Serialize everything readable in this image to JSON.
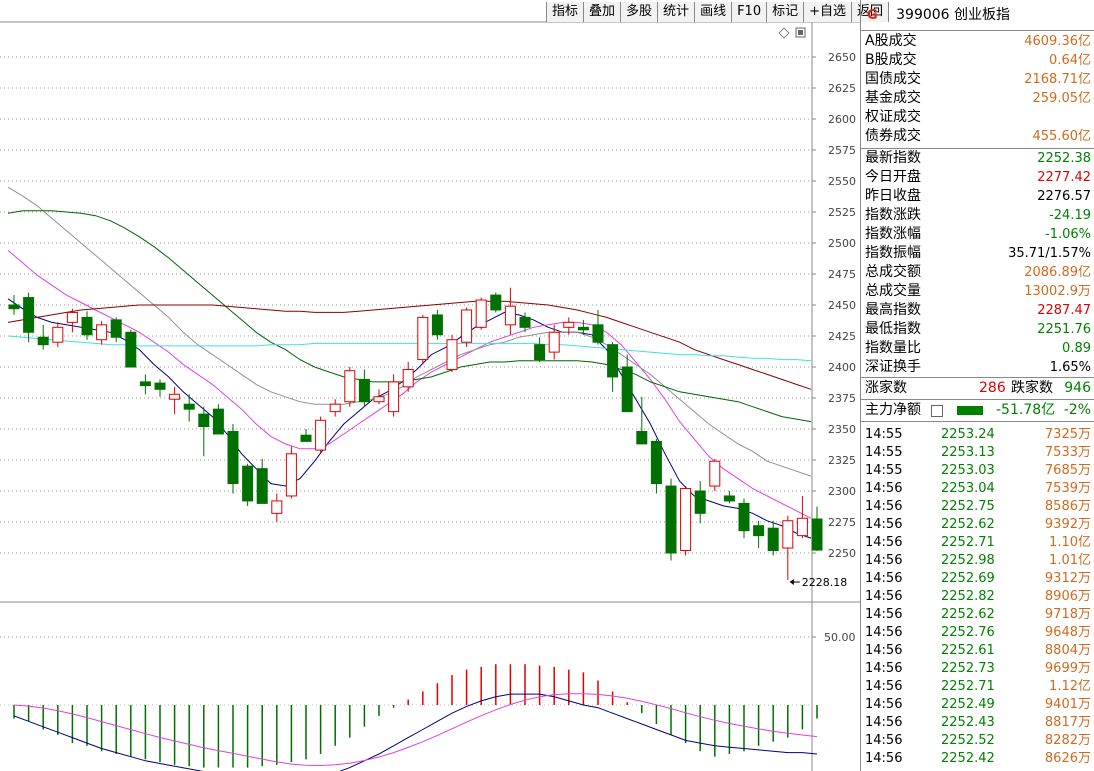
{
  "toolbar": {
    "buttons": [
      "指标",
      "叠加",
      "多股",
      "统计",
      "画线",
      "F10",
      "标记",
      "+自选",
      "返回"
    ]
  },
  "panel": {
    "logo": "G",
    "code": "399006",
    "name": "创业板指",
    "turnover": [
      {
        "label": "A股成交",
        "value": "4609.36亿"
      },
      {
        "label": "B股成交",
        "value": "0.64亿"
      },
      {
        "label": "国债成交",
        "value": "2168.71亿"
      },
      {
        "label": "基金成交",
        "value": "259.05亿"
      },
      {
        "label": "权证成交",
        "value": ""
      },
      {
        "label": "债券成交",
        "value": "455.60亿"
      }
    ],
    "quote": [
      {
        "label": "最新指数",
        "value": "2252.38",
        "color": "green"
      },
      {
        "label": "今日开盘",
        "value": "2277.42",
        "color": "red"
      },
      {
        "label": "昨日收盘",
        "value": "2276.57",
        "color": "black"
      },
      {
        "label": "指数涨跌",
        "value": "-24.19",
        "color": "green"
      },
      {
        "label": "指数涨幅",
        "value": "-1.06%",
        "color": "green"
      },
      {
        "label": "指数振幅",
        "value": "35.71/1.57%",
        "color": "black"
      },
      {
        "label": "总成交额",
        "value": "2086.89亿",
        "color": "orange"
      },
      {
        "label": "总成交量",
        "value": "13002.9万",
        "color": "orange"
      },
      {
        "label": "最高指数",
        "value": "2287.47",
        "color": "red"
      },
      {
        "label": "最低指数",
        "value": "2251.76",
        "color": "green"
      },
      {
        "label": "指数量比",
        "value": "0.89",
        "color": "green"
      },
      {
        "label": "深证换手",
        "value": "1.65%",
        "color": "black"
      }
    ],
    "breadth": {
      "up_label": "涨家数",
      "up": "286",
      "down_label": "跌家数",
      "down": "946"
    },
    "main_flow": {
      "label": "主力净额",
      "value": "-51.78亿",
      "pct": "-2%"
    },
    "ticks": [
      {
        "t": "14:55",
        "p": "2253.24",
        "v": "7325万"
      },
      {
        "t": "14:55",
        "p": "2253.13",
        "v": "7533万"
      },
      {
        "t": "14:55",
        "p": "2253.03",
        "v": "7685万"
      },
      {
        "t": "14:56",
        "p": "2253.04",
        "v": "7539万"
      },
      {
        "t": "14:56",
        "p": "2252.75",
        "v": "8586万"
      },
      {
        "t": "14:56",
        "p": "2252.62",
        "v": "9392万"
      },
      {
        "t": "14:56",
        "p": "2252.71",
        "v": "1.10亿"
      },
      {
        "t": "14:56",
        "p": "2252.98",
        "v": "1.01亿"
      },
      {
        "t": "14:56",
        "p": "2252.69",
        "v": "9312万"
      },
      {
        "t": "14:56",
        "p": "2252.82",
        "v": "8906万"
      },
      {
        "t": "14:56",
        "p": "2252.62",
        "v": "9718万"
      },
      {
        "t": "14:56",
        "p": "2252.76",
        "v": "9648万"
      },
      {
        "t": "14:56",
        "p": "2252.61",
        "v": "8804万"
      },
      {
        "t": "14:56",
        "p": "2252.73",
        "v": "9699万"
      },
      {
        "t": "14:56",
        "p": "2252.71",
        "v": "1.12亿"
      },
      {
        "t": "14:56",
        "p": "2252.49",
        "v": "9401万"
      },
      {
        "t": "14:56",
        "p": "2252.43",
        "v": "8817万"
      },
      {
        "t": "14:56",
        "p": "2252.52",
        "v": "8282万"
      },
      {
        "t": "14:56",
        "p": "2252.42",
        "v": "8626万"
      }
    ]
  },
  "chart_data": [
    {
      "type": "candlestick",
      "yticks": [
        2250,
        2275,
        2300,
        2325,
        2350,
        2375,
        2400,
        2425,
        2450,
        2475,
        2500,
        2525,
        2550,
        2575,
        2600,
        2625,
        2650
      ],
      "ylim": [
        2225,
        2665
      ],
      "grid": true,
      "candles": [
        [
          2450,
          2458,
          2442,
          2447
        ],
        [
          2456,
          2460,
          2420,
          2428
        ],
        [
          2424,
          2434,
          2414,
          2418
        ],
        [
          2420,
          2436,
          2416,
          2432
        ],
        [
          2436,
          2447,
          2428,
          2444
        ],
        [
          2440,
          2445,
          2422,
          2426
        ],
        [
          2422,
          2437,
          2418,
          2434
        ],
        [
          2438,
          2440,
          2420,
          2424
        ],
        [
          2428,
          2430,
          2400,
          2400
        ],
        [
          2388,
          2394,
          2378,
          2385
        ],
        [
          2387,
          2390,
          2376,
          2382
        ],
        [
          2374,
          2384,
          2362,
          2378
        ],
        [
          2370,
          2378,
          2356,
          2366
        ],
        [
          2362,
          2368,
          2328,
          2352
        ],
        [
          2366,
          2370,
          2346,
          2346
        ],
        [
          2348,
          2354,
          2298,
          2306
        ],
        [
          2320,
          2322,
          2288,
          2292
        ],
        [
          2318,
          2326,
          2290,
          2290
        ],
        [
          2282,
          2298,
          2275,
          2292
        ],
        [
          2296,
          2336,
          2294,
          2330
        ],
        [
          2345,
          2350,
          2340,
          2340
        ],
        [
          2333,
          2360,
          2330,
          2357
        ],
        [
          2364,
          2374,
          2360,
          2370
        ],
        [
          2372,
          2400,
          2368,
          2397
        ],
        [
          2390,
          2398,
          2368,
          2372
        ],
        [
          2372,
          2382,
          2370,
          2376
        ],
        [
          2364,
          2394,
          2360,
          2388
        ],
        [
          2384,
          2404,
          2380,
          2398
        ],
        [
          2406,
          2442,
          2402,
          2440
        ],
        [
          2442,
          2446,
          2422,
          2426
        ],
        [
          2398,
          2426,
          2396,
          2422
        ],
        [
          2420,
          2448,
          2416,
          2446
        ],
        [
          2432,
          2456,
          2430,
          2454
        ],
        [
          2458,
          2460,
          2444,
          2446
        ],
        [
          2434,
          2464,
          2426,
          2449
        ],
        [
          2440,
          2444,
          2428,
          2432
        ],
        [
          2418,
          2424,
          2404,
          2406
        ],
        [
          2412,
          2434,
          2406,
          2428
        ],
        [
          2432,
          2440,
          2426,
          2436
        ],
        [
          2432,
          2438,
          2426,
          2430
        ],
        [
          2434,
          2446,
          2418,
          2420
        ],
        [
          2418,
          2420,
          2380,
          2392
        ],
        [
          2400,
          2410,
          2364,
          2364
        ],
        [
          2348,
          2376,
          2338,
          2338
        ],
        [
          2340,
          2342,
          2298,
          2306
        ],
        [
          2304,
          2310,
          2244,
          2250
        ],
        [
          2252,
          2304,
          2248,
          2302
        ],
        [
          2300,
          2308,
          2274,
          2282
        ],
        [
          2304,
          2326,
          2300,
          2324
        ],
        [
          2296,
          2300,
          2290,
          2292
        ],
        [
          2290,
          2294,
          2262,
          2268
        ],
        [
          2272,
          2276,
          2254,
          2264
        ],
        [
          2270,
          2276,
          2248,
          2252
        ],
        [
          2254,
          2280,
          2228.18,
          2276
        ],
        [
          2264,
          2296,
          2262,
          2278
        ],
        [
          2277.42,
          2287.47,
          2251.76,
          2252.38
        ]
      ],
      "ma": [
        {
          "color": "#000080",
          "values": [
            2455,
            2447,
            2440,
            2436,
            2434,
            2432,
            2430,
            2428,
            2422,
            2414,
            2402,
            2392,
            2380,
            2370,
            2360,
            2346,
            2330,
            2318,
            2306,
            2304,
            2310,
            2324,
            2340,
            2354,
            2364,
            2374,
            2380,
            2388,
            2398,
            2410,
            2416,
            2424,
            2432,
            2438,
            2444,
            2442,
            2438,
            2432,
            2428,
            2428,
            2426,
            2414,
            2394,
            2374,
            2354,
            2330,
            2308,
            2296,
            2292,
            2288,
            2286,
            2282,
            2276,
            2272,
            2266,
            2262
          ]
        },
        {
          "color": "#e040e0",
          "values": [
            2494,
            2484,
            2474,
            2466,
            2458,
            2452,
            2446,
            2440,
            2434,
            2428,
            2420,
            2412,
            2402,
            2394,
            2386,
            2376,
            2366,
            2354,
            2344,
            2338,
            2334,
            2334,
            2338,
            2346,
            2354,
            2362,
            2370,
            2378,
            2388,
            2396,
            2402,
            2408,
            2414,
            2420,
            2424,
            2428,
            2432,
            2434,
            2436,
            2436,
            2434,
            2428,
            2418,
            2404,
            2390,
            2374,
            2356,
            2342,
            2328,
            2318,
            2310,
            2302,
            2296,
            2290,
            2284,
            2278
          ]
        },
        {
          "color": "#909090",
          "values": [
            2545,
            2538,
            2530,
            2520,
            2510,
            2500,
            2490,
            2480,
            2470,
            2460,
            2450,
            2440,
            2428,
            2418,
            2410,
            2402,
            2394,
            2386,
            2380,
            2376,
            2372,
            2370,
            2370,
            2370,
            2372,
            2374,
            2378,
            2384,
            2392,
            2398,
            2404,
            2410,
            2414,
            2418,
            2420,
            2424,
            2426,
            2428,
            2428,
            2428,
            2424,
            2418,
            2410,
            2402,
            2394,
            2384,
            2374,
            2364,
            2354,
            2346,
            2338,
            2332,
            2324,
            2320,
            2316,
            2312
          ]
        },
        {
          "color": "#006400",
          "values": [
            2524,
            2526,
            2526,
            2526,
            2525,
            2524,
            2522,
            2518,
            2512,
            2505,
            2497,
            2488,
            2478,
            2468,
            2458,
            2448,
            2438,
            2428,
            2420,
            2414,
            2406,
            2400,
            2396,
            2392,
            2390,
            2388,
            2388,
            2388,
            2390,
            2392,
            2396,
            2400,
            2402,
            2404,
            2404,
            2405,
            2405,
            2405,
            2405,
            2405,
            2404,
            2402,
            2398,
            2394,
            2388,
            2384,
            2380,
            2378,
            2376,
            2374,
            2372,
            2368,
            2364,
            2360,
            2358,
            2356
          ]
        },
        {
          "color": "#8b0000",
          "values": [
            2436,
            2438,
            2440,
            2442,
            2444,
            2446,
            2447,
            2448,
            2449,
            2450,
            2450,
            2450,
            2450,
            2450,
            2450,
            2449,
            2448,
            2447,
            2446,
            2445,
            2445,
            2444,
            2444,
            2444,
            2445,
            2446,
            2447,
            2448,
            2449,
            2450,
            2451,
            2452,
            2453,
            2453,
            2453,
            2452,
            2451,
            2450,
            2448,
            2446,
            2443,
            2440,
            2436,
            2432,
            2428,
            2424,
            2420,
            2414,
            2410,
            2406,
            2402,
            2398,
            2394,
            2390,
            2386,
            2382
          ]
        },
        {
          "color": "#40e0e0",
          "values": [
            2425,
            2424,
            2423,
            2422,
            2421,
            2420,
            2419,
            2418,
            2418,
            2417,
            2417,
            2417,
            2417,
            2417,
            2417,
            2417,
            2417,
            2417,
            2418,
            2418,
            2418,
            2419,
            2419,
            2419,
            2419,
            2419,
            2419,
            2419,
            2419,
            2419,
            2419,
            2419,
            2419,
            2419,
            2419,
            2419,
            2419,
            2418,
            2418,
            2417,
            2416,
            2415,
            2414,
            2413,
            2412,
            2411,
            2410,
            2410,
            2409,
            2409,
            2408,
            2407,
            2407,
            2406,
            2406,
            2405
          ]
        }
      ],
      "annotations": [
        {
          "text": "2228.18",
          "index": 53,
          "value": 2228.18
        }
      ]
    },
    {
      "type": "macd",
      "yticks": [
        50.0
      ],
      "ylim": [
        -60,
        60
      ],
      "hist": [
        -10,
        -12,
        -18,
        -22,
        -28,
        -30,
        -34,
        -36,
        -38,
        -40,
        -42,
        -44,
        -45,
        -46,
        -46,
        -46,
        -46,
        -45,
        -44,
        -42,
        -40,
        -36,
        -30,
        -24,
        -16,
        -8,
        -2,
        4,
        10,
        16,
        22,
        26,
        28,
        30,
        30,
        30,
        29,
        28,
        26,
        24,
        18,
        10,
        2,
        -6,
        -14,
        -22,
        -28,
        -34,
        -38,
        -36,
        -34,
        -30,
        -27,
        -24,
        -18,
        -10
      ],
      "dif": [
        -8,
        -12,
        -16,
        -20,
        -24,
        -28,
        -32,
        -35,
        -38,
        -41,
        -43,
        -45,
        -47,
        -49,
        -50,
        -52,
        -54,
        -56,
        -58,
        -58,
        -56,
        -53,
        -50,
        -46,
        -41,
        -36,
        -30,
        -24,
        -18,
        -12,
        -6,
        -1,
        3,
        6,
        8,
        8,
        8,
        6,
        3,
        0,
        -2,
        -6,
        -10,
        -14,
        -18,
        -22,
        -26,
        -28,
        -30,
        -31,
        -32,
        -33,
        -34,
        -35,
        -35,
        -36
      ]
    }
  ]
}
